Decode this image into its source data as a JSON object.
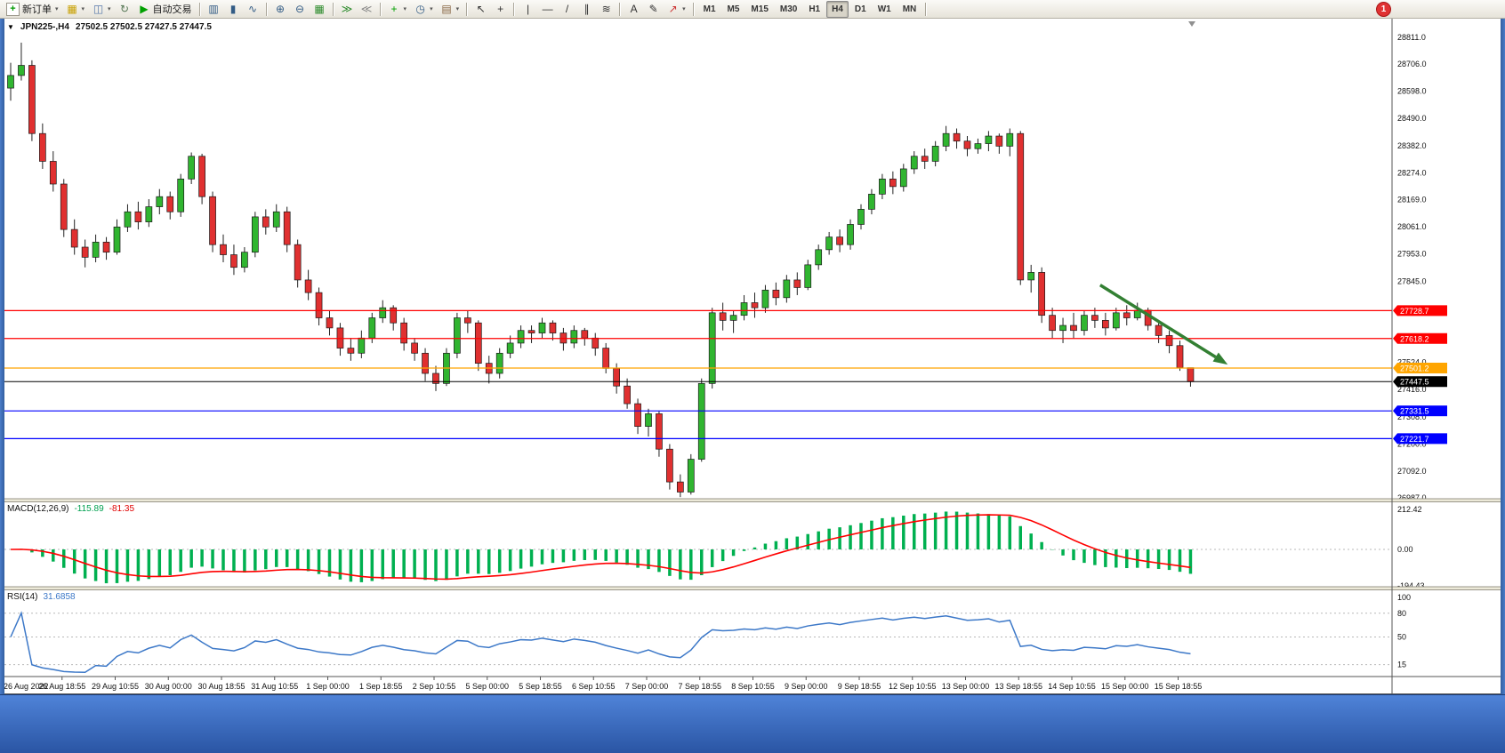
{
  "window": {
    "notification_count": "1"
  },
  "toolbar": {
    "items": [
      {
        "name": "new-order-button",
        "icon": "new-order-icon",
        "glyph": "+",
        "color": "#009900",
        "label": "新订单",
        "boxed": true,
        "caret": true
      },
      {
        "name": "new-chart-button",
        "icon": "new-chart-icon",
        "glyph": "▦",
        "color": "#C8A000",
        "caret": true
      },
      {
        "name": "profiles-button",
        "icon": "profiles-icon",
        "glyph": "◫",
        "color": "#5577AA",
        "caret": true
      },
      {
        "name": "refresh-button",
        "icon": "refresh-icon",
        "glyph": "↻",
        "color": "#557755"
      },
      {
        "name": "auto-trading-button",
        "icon": "play-icon",
        "glyph": "▶",
        "color": "#00A000",
        "label": "自动交易"
      },
      {
        "sep": true
      },
      {
        "name": "bar-chart-button",
        "icon": "bar-chart-icon",
        "glyph": "▥",
        "color": "#335C85"
      },
      {
        "name": "candlestick-button",
        "icon": "candlestick-icon",
        "glyph": "▮",
        "color": "#335C85"
      },
      {
        "name": "line-chart-button",
        "icon": "line-chart-icon",
        "glyph": "∿",
        "color": "#335C85"
      },
      {
        "sep": true
      },
      {
        "name": "zoom-in-button",
        "icon": "zoom-in-icon",
        "glyph": "⊕",
        "color": "#335C85"
      },
      {
        "name": "zoom-out-button",
        "icon": "zoom-out-icon",
        "glyph": "⊖",
        "color": "#335C85"
      },
      {
        "name": "tile-windows-button",
        "icon": "tile-windows-icon",
        "glyph": "▦",
        "color": "#2A8A2A"
      },
      {
        "sep": true
      },
      {
        "name": "auto-scroll-button",
        "icon": "auto-scroll-icon",
        "glyph": "≫",
        "color": "#2A8A2A"
      },
      {
        "name": "chart-shift-button",
        "icon": "chart-shift-icon",
        "glyph": "≪",
        "color": "#888888"
      },
      {
        "sep": true
      },
      {
        "name": "indicators-button",
        "icon": "indicators-icon",
        "glyph": "+",
        "color": "#00A000",
        "caret": true
      },
      {
        "name": "periods-button",
        "icon": "clock-icon",
        "glyph": "◷",
        "color": "#335C85",
        "caret": true
      },
      {
        "name": "templates-button",
        "icon": "template-icon",
        "glyph": "▤",
        "color": "#886644",
        "caret": true
      },
      {
        "sep": true
      },
      {
        "name": "cursor-button",
        "icon": "cursor-icon",
        "glyph": "↖",
        "color": "#333333"
      },
      {
        "name": "crosshair-button",
        "icon": "crosshair-icon",
        "glyph": "+",
        "color": "#333333"
      },
      {
        "sep": true
      },
      {
        "name": "vline-button",
        "icon": "vertical-line-icon",
        "glyph": "|",
        "color": "#333333"
      },
      {
        "name": "hline-button",
        "icon": "horizontal-line-icon",
        "glyph": "—",
        "color": "#333333"
      },
      {
        "name": "trendline-button",
        "icon": "trendline-icon",
        "glyph": "/",
        "color": "#333333"
      },
      {
        "name": "channel-button",
        "icon": "channel-icon",
        "glyph": "∥",
        "color": "#333333"
      },
      {
        "name": "fibonacci-button",
        "icon": "fibonacci-icon",
        "glyph": "≋",
        "color": "#333333"
      },
      {
        "sep": true
      },
      {
        "name": "text-button",
        "icon": "text-icon",
        "glyph": "A",
        "color": "#333333"
      },
      {
        "name": "label-button",
        "icon": "text-label-icon",
        "glyph": "✎",
        "color": "#333333"
      },
      {
        "name": "arrows-button",
        "icon": "arrows-icon",
        "glyph": "↗",
        "color": "#CC3333",
        "caret": true
      },
      {
        "sep": true
      }
    ],
    "timeframes": [
      {
        "label": "M1"
      },
      {
        "label": "M5"
      },
      {
        "label": "M15"
      },
      {
        "label": "M30"
      },
      {
        "label": "H1"
      },
      {
        "label": "H4",
        "active": true
      },
      {
        "label": "D1"
      },
      {
        "label": "W1"
      },
      {
        "label": "MN"
      }
    ]
  },
  "chart_data": {
    "type": "candlestick",
    "symbol": "JPN225-",
    "period": "H4",
    "title": {
      "symbol_period": "JPN225-,H4",
      "ohlc": "27502.5 27502.5 27427.5 27447.5"
    },
    "up_color": "#30B530",
    "down_color": "#E03030",
    "price_axis": {
      "labels": [
        "28811.0",
        "28706.0",
        "28598.0",
        "28490.0",
        "28382.0",
        "28274.0",
        "28169.0",
        "28061.0",
        "27953.0",
        "27845.0",
        "27524.0",
        "27416.0",
        "27308.0",
        "27200.0",
        "27092.0",
        "26987.0"
      ]
    },
    "time_axis": {
      "labels": [
        "26 Aug 2022",
        "26 Aug 18:55",
        "29 Aug 10:55",
        "30 Aug 00:00",
        "30 Aug 18:55",
        "31 Aug 10:55",
        "1 Sep 00:00",
        "1 Sep 18:55",
        "2 Sep 10:55",
        "5 Sep 00:00",
        "5 Sep 18:55",
        "6 Sep 10:55",
        "7 Sep 00:00",
        "7 Sep 18:55",
        "8 Sep 10:55",
        "9 Sep 00:00",
        "9 Sep 18:55",
        "12 Sep 10:55",
        "13 Sep 00:00",
        "13 Sep 18:55",
        "14 Sep 10:55",
        "15 Sep 00:00",
        "15 Sep 18:55"
      ]
    },
    "objects": {
      "hlines": [
        {
          "price": 27728.7,
          "label": "27728.7",
          "color": "#FF0000"
        },
        {
          "price": 27618.2,
          "label": "27618.2",
          "color": "#FF0000"
        },
        {
          "price": 27501.2,
          "label": "27501.2",
          "color": "#FFA500"
        },
        {
          "price": 27331.5,
          "label": "27331.5",
          "color": "#0000FF"
        },
        {
          "price": 27221.7,
          "label": "27221.7",
          "color": "#0000FF"
        }
      ],
      "current_price": {
        "value": 27447.5,
        "label": "27447.5",
        "color": "#000000"
      },
      "trend_arrow": {
        "from": {
          "index": 102.5,
          "price": 27830
        },
        "to": {
          "index": 114.5,
          "price": 27515
        },
        "color": "#338033"
      }
    },
    "indicators": {
      "macd": {
        "name": "MACD(12,26,9)",
        "params": [
          12,
          26,
          9
        ],
        "main_value": "-115.89",
        "signal_value": "-81.35",
        "axis": [
          "212.42",
          "0.00",
          "-194.43"
        ],
        "axis_values": [
          212.42,
          0,
          -194.43
        ],
        "colors": {
          "histogram": "#00B050",
          "signal": "#FF0000"
        }
      },
      "rsi": {
        "name": "RSI(14)",
        "period": 14,
        "value": "31.6858",
        "axis": [
          "100",
          "80",
          "50",
          "15"
        ],
        "axis_values": [
          100,
          80,
          50,
          15
        ],
        "levels": [
          80,
          50,
          15
        ],
        "color": "#3C78C8"
      }
    },
    "candles": [
      [
        28610,
        28710,
        28560,
        28660
      ],
      [
        28660,
        28790,
        28640,
        28700
      ],
      [
        28700,
        28720,
        28400,
        28430
      ],
      [
        28430,
        28470,
        28290,
        28320
      ],
      [
        28320,
        28360,
        28200,
        28230
      ],
      [
        28230,
        28250,
        28020,
        28050
      ],
      [
        28050,
        28090,
        27950,
        27980
      ],
      [
        27980,
        28010,
        27900,
        27940
      ],
      [
        27940,
        28030,
        27920,
        28000
      ],
      [
        28000,
        28020,
        27930,
        27960
      ],
      [
        27960,
        28090,
        27950,
        28060
      ],
      [
        28060,
        28150,
        28040,
        28120
      ],
      [
        28120,
        28160,
        28050,
        28080
      ],
      [
        28080,
        28170,
        28060,
        28140
      ],
      [
        28140,
        28210,
        28110,
        28180
      ],
      [
        28180,
        28200,
        28090,
        28120
      ],
      [
        28120,
        28270,
        28100,
        28250
      ],
      [
        28250,
        28355,
        28230,
        28340
      ],
      [
        28340,
        28350,
        28150,
        28180
      ],
      [
        28180,
        28200,
        27960,
        27990
      ],
      [
        27990,
        28030,
        27920,
        27950
      ],
      [
        27950,
        27990,
        27870,
        27900
      ],
      [
        27900,
        27980,
        27880,
        27960
      ],
      [
        27960,
        28120,
        27940,
        28100
      ],
      [
        28100,
        28130,
        28030,
        28060
      ],
      [
        28060,
        28150,
        28040,
        28120
      ],
      [
        28120,
        28140,
        27960,
        27990
      ],
      [
        27990,
        28010,
        27820,
        27850
      ],
      [
        27850,
        27890,
        27770,
        27800
      ],
      [
        27800,
        27820,
        27670,
        27700
      ],
      [
        27700,
        27730,
        27630,
        27660
      ],
      [
        27660,
        27680,
        27550,
        27580
      ],
      [
        27580,
        27620,
        27530,
        27560
      ],
      [
        27560,
        27650,
        27540,
        27620
      ],
      [
        27620,
        27720,
        27600,
        27700
      ],
      [
        27700,
        27770,
        27680,
        27740
      ],
      [
        27740,
        27750,
        27650,
        27680
      ],
      [
        27680,
        27700,
        27570,
        27600
      ],
      [
        27600,
        27620,
        27530,
        27560
      ],
      [
        27560,
        27580,
        27450,
        27480
      ],
      [
        27480,
        27510,
        27410,
        27440
      ],
      [
        27440,
        27580,
        27430,
        27560
      ],
      [
        27560,
        27720,
        27540,
        27700
      ],
      [
        27700,
        27730,
        27640,
        27680
      ],
      [
        27680,
        27690,
        27490,
        27520
      ],
      [
        27520,
        27550,
        27440,
        27480
      ],
      [
        27480,
        27580,
        27460,
        27560
      ],
      [
        27560,
        27630,
        27540,
        27600
      ],
      [
        27600,
        27670,
        27580,
        27650
      ],
      [
        27650,
        27670,
        27600,
        27640
      ],
      [
        27640,
        27700,
        27620,
        27680
      ],
      [
        27680,
        27690,
        27610,
        27640
      ],
      [
        27640,
        27660,
        27570,
        27600
      ],
      [
        27600,
        27670,
        27580,
        27650
      ],
      [
        27650,
        27660,
        27590,
        27620
      ],
      [
        27620,
        27640,
        27550,
        27580
      ],
      [
        27580,
        27600,
        27480,
        27500
      ],
      [
        27500,
        27520,
        27400,
        27430
      ],
      [
        27430,
        27460,
        27340,
        27360
      ],
      [
        27360,
        27380,
        27240,
        27270
      ],
      [
        27270,
        27340,
        27230,
        27320
      ],
      [
        27320,
        27330,
        27150,
        27180
      ],
      [
        27180,
        27200,
        27020,
        27050
      ],
      [
        27050,
        27080,
        26990,
        27010
      ],
      [
        27010,
        27160,
        27000,
        27140
      ],
      [
        27140,
        27460,
        27130,
        27440
      ],
      [
        27440,
        27740,
        27420,
        27720
      ],
      [
        27720,
        27760,
        27650,
        27690
      ],
      [
        27690,
        27730,
        27640,
        27710
      ],
      [
        27710,
        27790,
        27690,
        27760
      ],
      [
        27760,
        27800,
        27700,
        27740
      ],
      [
        27740,
        27830,
        27720,
        27810
      ],
      [
        27810,
        27840,
        27750,
        27780
      ],
      [
        27780,
        27870,
        27760,
        27850
      ],
      [
        27850,
        27880,
        27790,
        27820
      ],
      [
        27820,
        27930,
        27810,
        27910
      ],
      [
        27910,
        27990,
        27890,
        27970
      ],
      [
        27970,
        28040,
        27950,
        28020
      ],
      [
        28020,
        28050,
        27960,
        27990
      ],
      [
        27990,
        28090,
        27970,
        28070
      ],
      [
        28070,
        28150,
        28050,
        28130
      ],
      [
        28130,
        28210,
        28110,
        28190
      ],
      [
        28190,
        28270,
        28170,
        28250
      ],
      [
        28250,
        28280,
        28190,
        28220
      ],
      [
        28220,
        28310,
        28200,
        28290
      ],
      [
        28290,
        28360,
        28270,
        28340
      ],
      [
        28340,
        28370,
        28290,
        28320
      ],
      [
        28320,
        28400,
        28300,
        28380
      ],
      [
        28380,
        28460,
        28360,
        28430
      ],
      [
        28430,
        28450,
        28370,
        28400
      ],
      [
        28400,
        28420,
        28340,
        28370
      ],
      [
        28370,
        28410,
        28350,
        28390
      ],
      [
        28390,
        28440,
        28360,
        28420
      ],
      [
        28420,
        28430,
        28350,
        28380
      ],
      [
        28380,
        28450,
        28340,
        28430
      ],
      [
        28430,
        28440,
        27830,
        27850
      ],
      [
        27850,
        27910,
        27800,
        27880
      ],
      [
        27880,
        27900,
        27680,
        27710
      ],
      [
        27710,
        27740,
        27620,
        27650
      ],
      [
        27650,
        27700,
        27600,
        27670
      ],
      [
        27670,
        27720,
        27620,
        27650
      ],
      [
        27650,
        27730,
        27630,
        27710
      ],
      [
        27710,
        27740,
        27660,
        27690
      ],
      [
        27690,
        27720,
        27630,
        27660
      ],
      [
        27660,
        27740,
        27650,
        27720
      ],
      [
        27720,
        27750,
        27670,
        27700
      ],
      [
        27700,
        27760,
        27690,
        27730
      ],
      [
        27730,
        27740,
        27650,
        27670
      ],
      [
        27670,
        27690,
        27600,
        27630
      ],
      [
        27630,
        27650,
        27560,
        27590
      ],
      [
        27590,
        27610,
        27490,
        27502.5
      ],
      [
        27502.5,
        27502.5,
        27427.5,
        27447.5
      ]
    ]
  }
}
